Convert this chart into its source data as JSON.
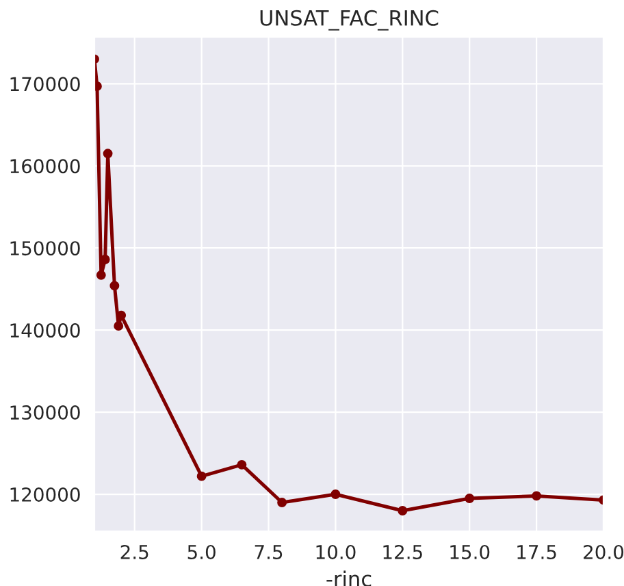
{
  "chart_data": {
    "type": "line",
    "title": "UNSAT_FAC_RINC",
    "xlabel": "-rinc",
    "x": [
      1.0,
      1.1,
      1.25,
      1.4,
      1.5,
      1.75,
      1.9,
      2.0,
      5.0,
      6.5,
      8.0,
      10.0,
      12.5,
      15.0,
      17.5,
      20.0
    ],
    "series": [
      {
        "color": "#800000",
        "values": [
          173000,
          169700,
          146700,
          148600,
          161500,
          145400,
          140500,
          141800,
          122200,
          123600,
          119000,
          120000,
          118000,
          119500,
          119800,
          119300
        ]
      }
    ],
    "xlim": [
      1,
      20
    ],
    "xticks": [
      {
        "value": 2.5,
        "label": "2.5"
      },
      {
        "value": 5,
        "label": "5.0"
      },
      {
        "value": 7.5,
        "label": "7.5"
      },
      {
        "value": 10,
        "label": "10.0"
      },
      {
        "value": 12.5,
        "label": "12.5"
      },
      {
        "value": 15,
        "label": "15.0"
      },
      {
        "value": 17.5,
        "label": "17.5"
      },
      {
        "value": 20,
        "label": "20.0"
      }
    ],
    "ylim": [
      115500,
      175700
    ],
    "yticks": [
      120000,
      130000,
      140000,
      150000,
      160000,
      170000
    ],
    "grid": true,
    "marker": "circle",
    "line_style": "solid"
  }
}
